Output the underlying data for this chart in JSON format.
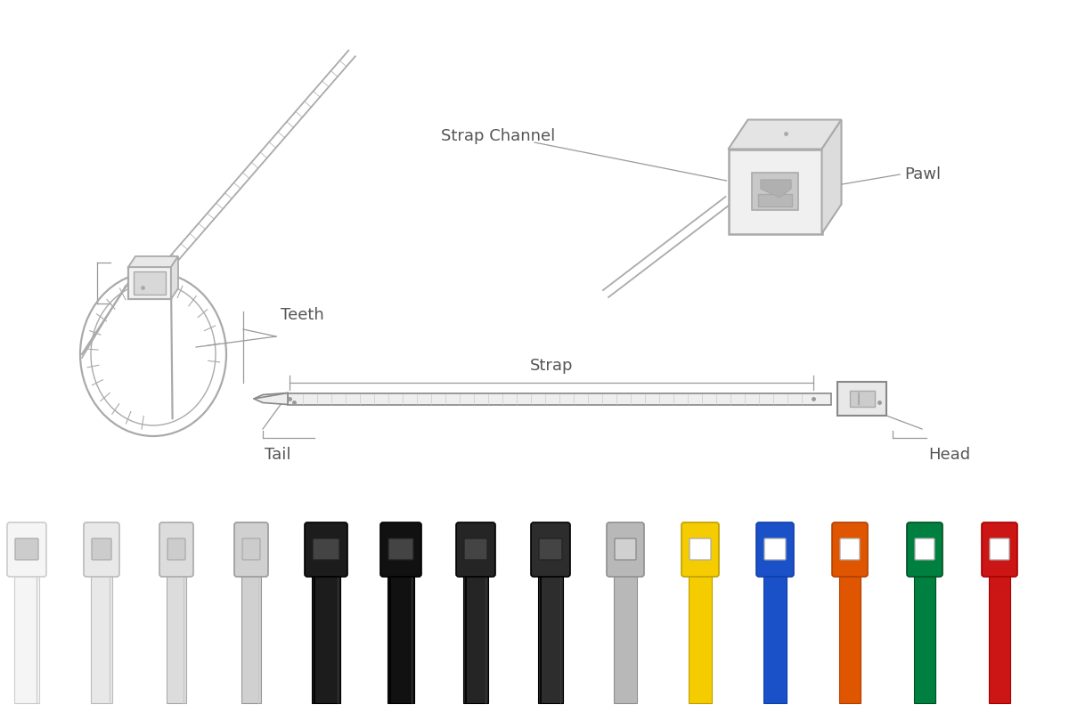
{
  "bg_color": "#ffffff",
  "line_color": "#aaaaaa",
  "line_color_dark": "#888888",
  "label_color": "#555555",
  "label_fontsize": 13,
  "annotation_color": "#999999",
  "labels": {
    "strap_channel": "Strap Channel",
    "pawl": "Pawl",
    "teeth": "Teeth",
    "strap": "Strap",
    "tail": "Tail",
    "head": "Head"
  },
  "tie_colors": [
    "#f5f5f5",
    "#e8e8e8",
    "#dcdcdc",
    "#d0d0d0",
    "#1c1c1c",
    "#111111",
    "#252525",
    "#2d2d2d",
    "#b8b8b8",
    "#f5cc00",
    "#1a50c8",
    "#e05500",
    "#008040",
    "#cc1515"
  ],
  "tie_ec_colors": [
    "#cccccc",
    "#bbbbbb",
    "#aaaaaa",
    "#999999",
    "#000000",
    "#000000",
    "#000000",
    "#000000",
    "#909090",
    "#c0a000",
    "#1040aa",
    "#b04000",
    "#005020",
    "#aa0000"
  ]
}
